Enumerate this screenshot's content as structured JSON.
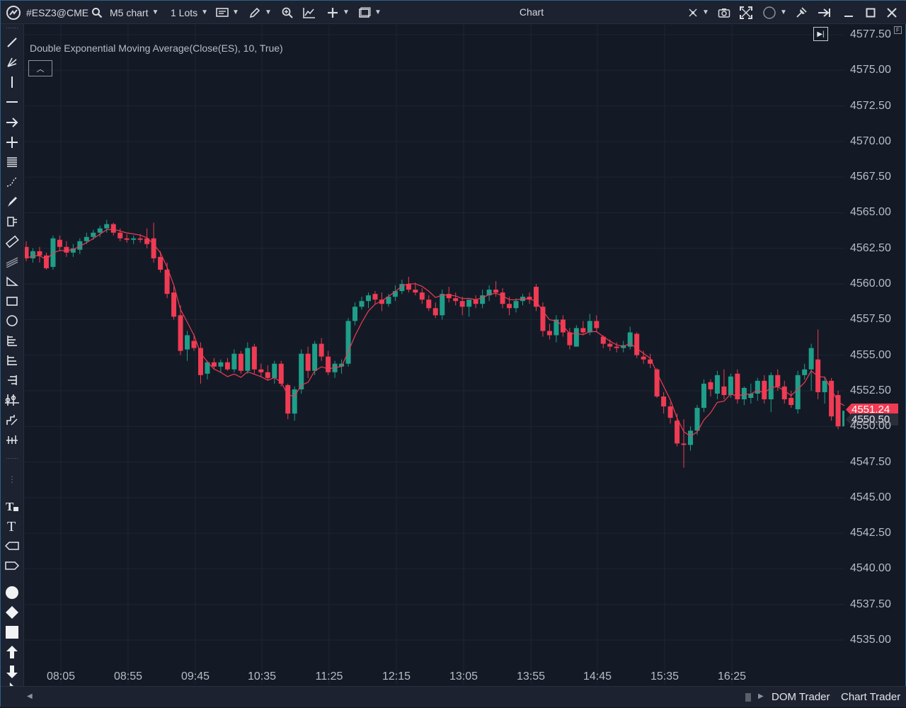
{
  "toolbar": {
    "symbol": "#ESZ3@CME",
    "timeframe": "M5 chart",
    "lots": "1 Lots",
    "window_title": "Chart"
  },
  "indicator": {
    "label": "Double Exponential Moving Average(Close(ES), 10, True)"
  },
  "price_axis": {
    "labels": [
      "4577.50",
      "4575.00",
      "4572.50",
      "4570.00",
      "4567.50",
      "4565.00",
      "4562.50",
      "4560.00",
      "4557.50",
      "4555.00",
      "4552.50",
      "4550.00",
      "4547.50",
      "4545.00",
      "4542.50",
      "4540.00",
      "4537.50",
      "4535.00"
    ],
    "dema_tag": "4551.24",
    "last_price_tag": "4550.50"
  },
  "time_axis": {
    "labels": [
      "08:05",
      "08:55",
      "09:45",
      "10:35",
      "11:25",
      "12:15",
      "13:05",
      "13:55",
      "14:45",
      "15:35",
      "16:25"
    ]
  },
  "bottom_tabs": {
    "dom_trader": "DOM Trader",
    "chart_trader": "Chart Trader"
  },
  "colors": {
    "up": "#1f9e89",
    "down": "#ef3b53",
    "dema": "#ef3b53",
    "background": "#131a26"
  },
  "chart_data": {
    "type": "candlestick",
    "y_range": [
      4533.5,
      4578.5
    ],
    "dema_period": 10,
    "candles": [
      [
        4562.6,
        4563.0,
        4561.6,
        4561.8
      ],
      [
        4561.8,
        4562.5,
        4561.5,
        4562.3
      ],
      [
        4562.3,
        4562.6,
        4561.5,
        4562.0
      ],
      [
        4562.0,
        4562.2,
        4561.0,
        4561.1
      ],
      [
        4561.2,
        4563.4,
        4561.0,
        4563.2
      ],
      [
        4563.1,
        4563.4,
        4562.3,
        4562.6
      ],
      [
        4562.6,
        4563.0,
        4561.9,
        4562.2
      ],
      [
        4562.2,
        4562.8,
        4561.9,
        4562.5
      ],
      [
        4562.4,
        4563.2,
        4562.1,
        4563.0
      ],
      [
        4563.0,
        4563.6,
        4562.8,
        4563.3
      ],
      [
        4563.3,
        4563.8,
        4563.1,
        4563.6
      ],
      [
        4563.6,
        4564.1,
        4563.3,
        4563.9
      ],
      [
        4563.9,
        4564.5,
        4563.6,
        4564.2
      ],
      [
        4564.2,
        4564.3,
        4563.4,
        4563.6
      ],
      [
        4563.6,
        4563.9,
        4563.0,
        4563.2
      ],
      [
        4563.2,
        4563.5,
        4562.9,
        4563.1
      ],
      [
        4563.1,
        4563.4,
        4562.8,
        4563.2
      ],
      [
        4563.2,
        4563.5,
        4562.9,
        4563.1
      ],
      [
        4563.2,
        4563.9,
        4562.5,
        4562.8
      ],
      [
        4563.2,
        4564.3,
        4561.5,
        4561.8
      ],
      [
        4561.9,
        4562.3,
        4560.8,
        4561.0
      ],
      [
        4561.0,
        4561.5,
        4559.0,
        4559.3
      ],
      [
        4559.4,
        4559.8,
        4557.5,
        4557.7
      ],
      [
        4557.8,
        4558.5,
        4555.0,
        4555.3
      ],
      [
        4555.4,
        4556.7,
        4554.6,
        4556.4
      ],
      [
        4556.0,
        4556.5,
        4555.3,
        4555.5
      ],
      [
        4555.5,
        4555.9,
        4553.0,
        4553.6
      ],
      [
        4553.7,
        4554.6,
        4553.3,
        4554.5
      ],
      [
        4554.5,
        4554.8,
        4554.0,
        4554.2
      ],
      [
        4554.2,
        4554.7,
        4553.8,
        4554.5
      ],
      [
        4554.5,
        4554.8,
        4553.9,
        4554.0
      ],
      [
        4554.0,
        4555.4,
        4553.8,
        4555.1
      ],
      [
        4555.1,
        4555.3,
        4553.7,
        4553.9
      ],
      [
        4553.9,
        4555.9,
        4553.7,
        4555.5
      ],
      [
        4555.6,
        4555.8,
        4553.7,
        4554.0
      ],
      [
        4554.0,
        4554.4,
        4553.5,
        4553.8
      ],
      [
        4553.8,
        4554.3,
        4553.2,
        4553.4
      ],
      [
        4553.4,
        4554.6,
        4553.0,
        4554.4
      ],
      [
        4554.4,
        4554.6,
        4552.8,
        4553.0
      ],
      [
        4552.9,
        4553.0,
        4550.5,
        4550.9
      ],
      [
        4550.9,
        4552.8,
        4550.4,
        4552.6
      ],
      [
        4552.6,
        4555.4,
        4552.3,
        4555.1
      ],
      [
        4555.1,
        4555.6,
        4553.4,
        4553.9
      ],
      [
        4553.9,
        4556.0,
        4553.6,
        4555.8
      ],
      [
        4555.8,
        4556.2,
        4554.6,
        4554.9
      ],
      [
        4554.9,
        4555.3,
        4553.6,
        4553.8
      ],
      [
        4553.8,
        4554.6,
        4553.4,
        4554.4
      ],
      [
        4554.2,
        4554.7,
        4553.7,
        4554.4
      ],
      [
        4554.4,
        4557.6,
        4554.2,
        4557.4
      ],
      [
        4557.4,
        4558.7,
        4557.1,
        4558.4
      ],
      [
        4558.4,
        4559.1,
        4558.2,
        4558.8
      ],
      [
        4558.8,
        4559.4,
        4558.3,
        4559.2
      ],
      [
        4559.3,
        4559.5,
        4558.6,
        4558.9
      ],
      [
        4558.9,
        4559.4,
        4558.1,
        4558.6
      ],
      [
        4558.6,
        4559.3,
        4558.4,
        4559.1
      ],
      [
        4559.1,
        4559.9,
        4558.8,
        4559.5
      ],
      [
        4559.5,
        4560.3,
        4559.3,
        4560.0
      ],
      [
        4560.0,
        4560.5,
        4559.4,
        4559.6
      ],
      [
        4559.6,
        4560.1,
        4559.2,
        4559.4
      ],
      [
        4559.4,
        4559.7,
        4558.6,
        4558.9
      ],
      [
        4558.9,
        4559.2,
        4558.1,
        4558.3
      ],
      [
        4558.3,
        4558.7,
        4557.6,
        4557.8
      ],
      [
        4557.8,
        4559.6,
        4557.5,
        4559.3
      ],
      [
        4559.3,
        4559.8,
        4558.7,
        4559.0
      ],
      [
        4559.0,
        4559.4,
        4558.5,
        4558.8
      ],
      [
        4558.8,
        4559.1,
        4557.8,
        4558.4
      ],
      [
        4558.4,
        4558.7,
        4557.7,
        4558.9
      ],
      [
        4558.9,
        4559.2,
        4558.3,
        4558.6
      ],
      [
        4558.6,
        4559.6,
        4558.3,
        4559.2
      ],
      [
        4559.2,
        4559.9,
        4558.8,
        4559.6
      ],
      [
        4559.6,
        4560.2,
        4559.1,
        4559.4
      ],
      [
        4559.4,
        4559.7,
        4558.3,
        4558.6
      ],
      [
        4558.6,
        4559.1,
        4557.8,
        4558.3
      ],
      [
        4558.3,
        4559.0,
        4558.0,
        4558.8
      ],
      [
        4558.8,
        4559.3,
        4558.5,
        4559.1
      ],
      [
        4559.1,
        4559.4,
        4558.6,
        4558.9
      ],
      [
        4559.8,
        4560.0,
        4558.1,
        4558.4
      ],
      [
        4558.4,
        4558.7,
        4556.3,
        4556.7
      ],
      [
        4556.7,
        4557.2,
        4556.1,
        4556.4
      ],
      [
        4556.4,
        4557.8,
        4555.9,
        4557.5
      ],
      [
        4557.5,
        4557.8,
        4556.3,
        4556.6
      ],
      [
        4556.6,
        4556.9,
        4555.4,
        4555.7
      ],
      [
        4555.6,
        4557.1,
        4555.6,
        4556.9
      ],
      [
        4556.9,
        4557.4,
        4556.4,
        4556.6
      ],
      [
        4556.6,
        4557.9,
        4556.4,
        4557.4
      ],
      [
        4557.4,
        4557.8,
        4556.6,
        4556.9
      ],
      [
        4556.3,
        4556.4,
        4555.5,
        4555.8
      ],
      [
        4555.8,
        4556.1,
        4555.3,
        4555.6
      ],
      [
        4555.6,
        4555.9,
        4555.2,
        4555.5
      ],
      [
        4555.5,
        4556.0,
        4555.2,
        4555.7
      ],
      [
        4555.6,
        4557.0,
        4555.4,
        4556.6
      ],
      [
        4556.5,
        4556.6,
        4554.8,
        4555.0
      ],
      [
        4554.9,
        4555.3,
        4554.4,
        4554.7
      ],
      [
        4554.7,
        4555.1,
        4554.1,
        4554.4
      ],
      [
        4554.0,
        4554.1,
        4552.0,
        4552.1
      ],
      [
        4552.1,
        4552.4,
        4550.9,
        4551.4
      ],
      [
        4551.4,
        4551.7,
        4550.2,
        4550.6
      ],
      [
        4550.4,
        4550.9,
        4548.6,
        4548.8
      ],
      [
        4548.8,
        4550.5,
        4547.1,
        4548.7
      ],
      [
        4548.7,
        4550.0,
        4548.3,
        4549.7
      ],
      [
        4549.7,
        4551.5,
        4549.4,
        4551.3
      ],
      [
        4551.3,
        4553.3,
        4551.0,
        4553.0
      ],
      [
        4553.1,
        4553.3,
        4552.1,
        4552.6
      ],
      [
        4552.3,
        4553.9,
        4551.9,
        4553.6
      ],
      [
        4552.8,
        4554.0,
        4551.9,
        4552.2
      ],
      [
        4552.2,
        4553.7,
        4552.0,
        4553.5
      ],
      [
        4553.7,
        4554.0,
        4551.6,
        4551.9
      ],
      [
        4551.9,
        4552.8,
        4551.5,
        4552.7
      ],
      [
        4552.0,
        4553.0,
        4551.6,
        4552.3
      ],
      [
        4552.3,
        4553.4,
        4551.8,
        4553.2
      ],
      [
        4553.2,
        4553.6,
        4551.6,
        4551.9
      ],
      [
        4551.9,
        4553.8,
        4551.0,
        4553.6
      ],
      [
        4553.6,
        4554.0,
        4552.5,
        4552.8
      ],
      [
        4552.8,
        4553.2,
        4551.6,
        4551.9
      ],
      [
        4552.0,
        4552.5,
        4551.3,
        4551.5
      ],
      [
        4551.2,
        4553.9,
        4550.9,
        4553.6
      ],
      [
        4553.6,
        4554.4,
        4553.3,
        4554.0
      ],
      [
        4554.0,
        4555.8,
        4552.5,
        4555.5
      ],
      [
        4554.7,
        4556.8,
        4551.9,
        4552.4
      ],
      [
        4552.4,
        4553.5,
        4551.6,
        4553.2
      ],
      [
        4553.2,
        4553.4,
        4550.4,
        4550.7
      ],
      [
        4552.2,
        4552.5,
        4549.8,
        4550.0
      ],
      [
        4550.0,
        4551.3,
        4549.6,
        4551.1
      ],
      [
        4553.0,
        4553.3,
        4549.9,
        4550.2
      ],
      [
        4550.2,
        4551.4,
        4549.5,
        4550.5
      ]
    ]
  }
}
